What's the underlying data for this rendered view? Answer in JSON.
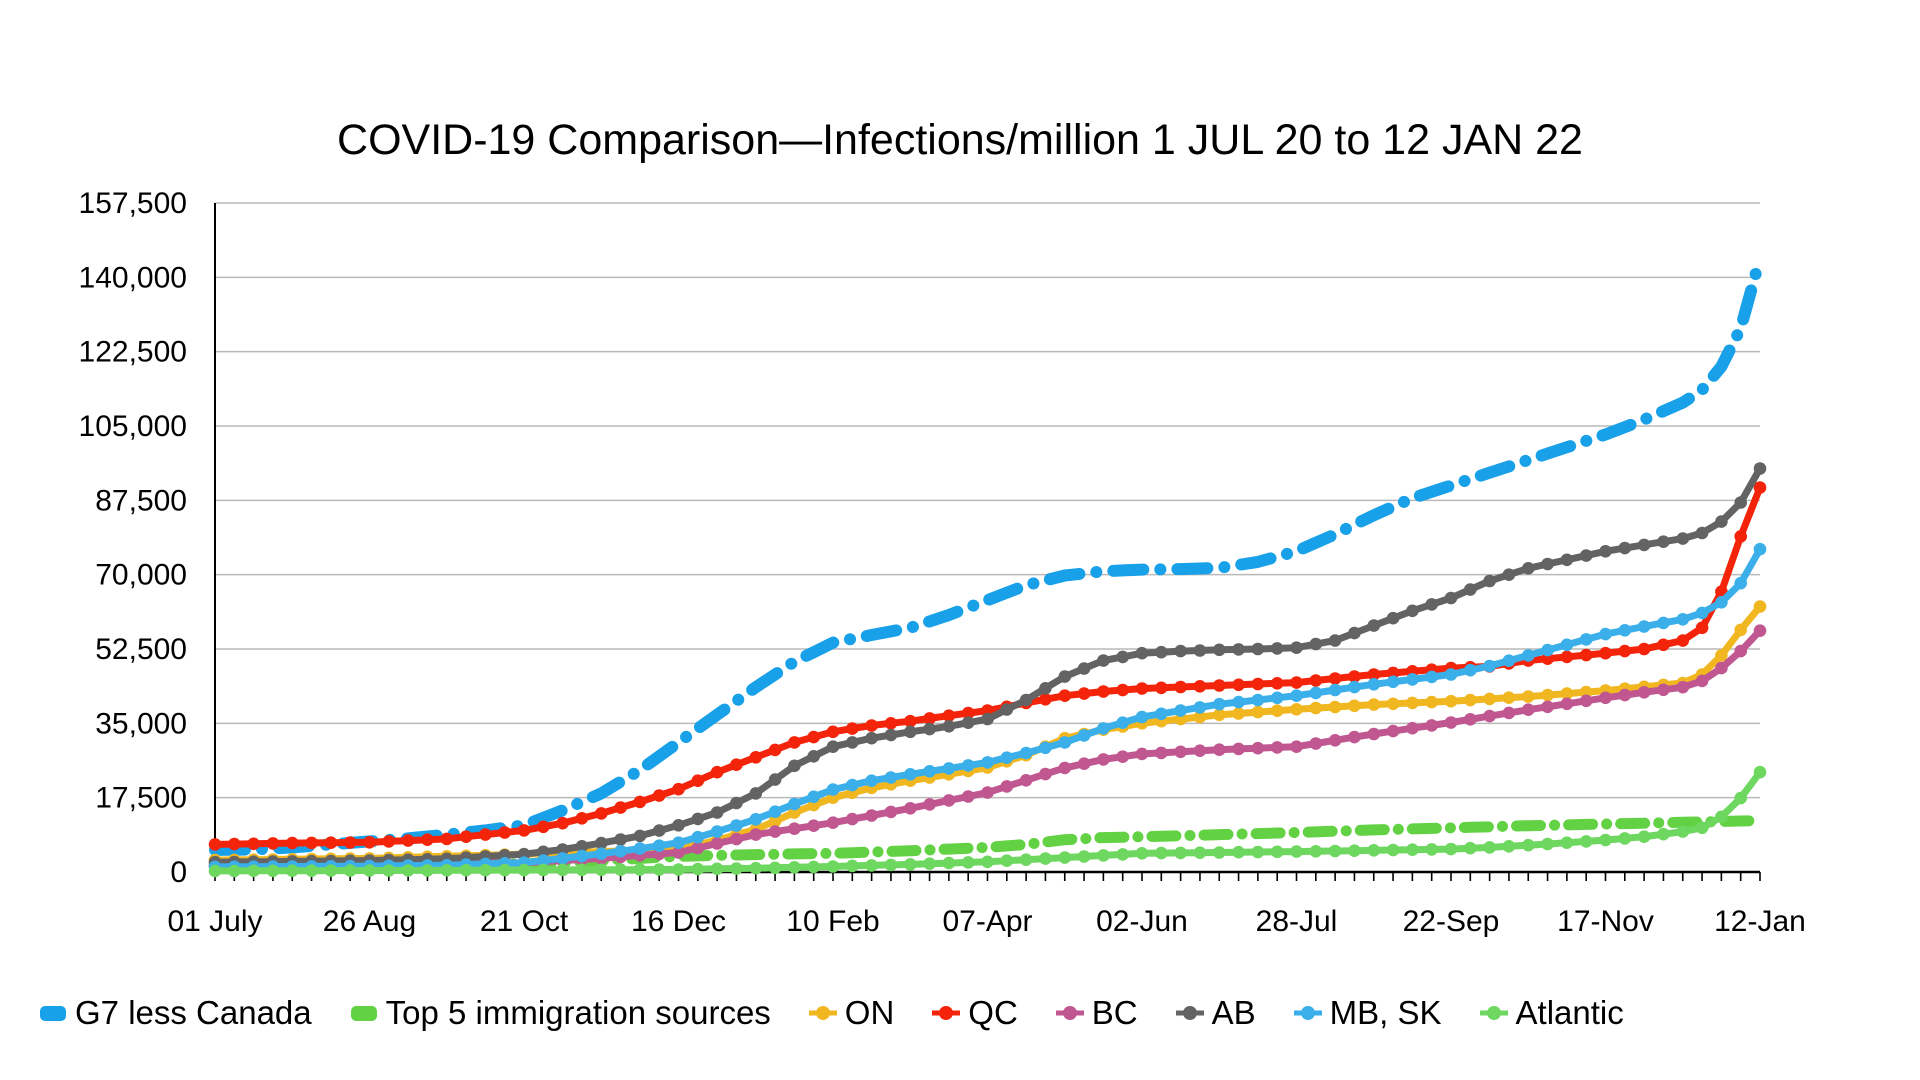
{
  "title": "COVID-19 Comparison—Infections/million 1 JUL 20 to 12 JAN 22",
  "chart_data": {
    "type": "line",
    "title": "COVID-19 Comparison—Infections/million 1 JUL 20 to 12 JAN 22",
    "grid": true,
    "legend_position": "bottom",
    "x_axis": {
      "tick_labels": [
        "01 July",
        "26 Aug",
        "21 Oct",
        "16 Dec",
        "10 Feb",
        "07-Apr",
        "02-Jun",
        "28-Jul",
        "22-Sep",
        "17-Nov",
        "12-Jan"
      ],
      "unit": "weeks since 1 Jul 2020",
      "range_weeks": [
        0,
        80
      ],
      "minor_ticks": "weekly"
    },
    "y_axis": {
      "min": 0,
      "max": 157500,
      "step": 17500,
      "tick_labels": [
        "0",
        "17,500",
        "35,000",
        "52,500",
        "70,000",
        "87,500",
        "105,000",
        "122,500",
        "140,000",
        "157,500"
      ]
    },
    "colors": {
      "gridline": "#b9b9b9",
      "axis": "#000000",
      "text": "#000000"
    },
    "series": [
      {
        "name": "G7 less Canada",
        "id": "g7",
        "color": "#18A0E8",
        "style": "dash-dot-wide",
        "points": [
          [
            0,
            5200
          ],
          [
            2,
            5300
          ],
          [
            4,
            5800
          ],
          [
            6,
            6500
          ],
          [
            8,
            7200
          ],
          [
            10,
            7900
          ],
          [
            12,
            8800
          ],
          [
            14,
            9800
          ],
          [
            16,
            11000
          ],
          [
            18,
            14500
          ],
          [
            20,
            18500
          ],
          [
            22,
            24000
          ],
          [
            24,
            30500
          ],
          [
            26,
            37000
          ],
          [
            28,
            43500
          ],
          [
            30,
            49500
          ],
          [
            32,
            54000
          ],
          [
            34,
            55800
          ],
          [
            36,
            57500
          ],
          [
            38,
            60500
          ],
          [
            40,
            64000
          ],
          [
            42,
            67500
          ],
          [
            44,
            69800
          ],
          [
            46,
            70800
          ],
          [
            48,
            71200
          ],
          [
            50,
            71300
          ],
          [
            52,
            71600
          ],
          [
            54,
            73000
          ],
          [
            56,
            75500
          ],
          [
            58,
            79500
          ],
          [
            60,
            84000
          ],
          [
            62,
            88000
          ],
          [
            64,
            91000
          ],
          [
            66,
            94000
          ],
          [
            68,
            97000
          ],
          [
            70,
            100000
          ],
          [
            72,
            103000
          ],
          [
            74,
            106500
          ],
          [
            76,
            110500
          ],
          [
            77,
            113500
          ],
          [
            78,
            119000
          ],
          [
            79,
            128000
          ],
          [
            80,
            144500
          ]
        ]
      },
      {
        "name": "Top 5 immigration sources",
        "id": "top5",
        "color": "#62D244",
        "style": "dash-dot",
        "points": [
          [
            0,
            900
          ],
          [
            8,
            1300
          ],
          [
            16,
            1900
          ],
          [
            20,
            2700
          ],
          [
            24,
            3700
          ],
          [
            28,
            4100
          ],
          [
            32,
            4400
          ],
          [
            36,
            5000
          ],
          [
            40,
            5800
          ],
          [
            42,
            6500
          ],
          [
            44,
            7600
          ],
          [
            46,
            8100
          ],
          [
            48,
            8300
          ],
          [
            52,
            8800
          ],
          [
            56,
            9300
          ],
          [
            60,
            9900
          ],
          [
            64,
            10400
          ],
          [
            68,
            10900
          ],
          [
            72,
            11300
          ],
          [
            76,
            11700
          ],
          [
            80,
            12100
          ]
        ]
      },
      {
        "name": "ON",
        "id": "on",
        "color": "#F0B721",
        "style": "solid",
        "points": [
          [
            0,
            2800
          ],
          [
            8,
            3200
          ],
          [
            12,
            3700
          ],
          [
            16,
            4200
          ],
          [
            20,
            4800
          ],
          [
            24,
            5400
          ],
          [
            26,
            7500
          ],
          [
            28,
            10000
          ],
          [
            30,
            14000
          ],
          [
            32,
            17500
          ],
          [
            34,
            19800
          ],
          [
            36,
            21500
          ],
          [
            38,
            23000
          ],
          [
            40,
            24600
          ],
          [
            42,
            27500
          ],
          [
            44,
            31500
          ],
          [
            46,
            33500
          ],
          [
            48,
            35000
          ],
          [
            52,
            37000
          ],
          [
            56,
            38300
          ],
          [
            60,
            39400
          ],
          [
            64,
            40200
          ],
          [
            68,
            41300
          ],
          [
            72,
            42700
          ],
          [
            74,
            43600
          ],
          [
            76,
            44500
          ],
          [
            77,
            46500
          ],
          [
            78,
            51000
          ],
          [
            79,
            57000
          ],
          [
            80,
            62500
          ]
        ]
      },
      {
        "name": "QC",
        "id": "qc",
        "color": "#F3240A",
        "style": "solid",
        "points": [
          [
            0,
            6500
          ],
          [
            4,
            6800
          ],
          [
            8,
            7000
          ],
          [
            12,
            7800
          ],
          [
            16,
            9800
          ],
          [
            18,
            11500
          ],
          [
            20,
            13800
          ],
          [
            22,
            16500
          ],
          [
            24,
            19500
          ],
          [
            26,
            23500
          ],
          [
            28,
            27000
          ],
          [
            30,
            30500
          ],
          [
            32,
            33000
          ],
          [
            34,
            34500
          ],
          [
            36,
            35500
          ],
          [
            38,
            36800
          ],
          [
            40,
            38000
          ],
          [
            42,
            39800
          ],
          [
            44,
            41500
          ],
          [
            46,
            42500
          ],
          [
            48,
            43200
          ],
          [
            52,
            43900
          ],
          [
            56,
            44600
          ],
          [
            60,
            46500
          ],
          [
            64,
            48000
          ],
          [
            66,
            48400
          ],
          [
            68,
            49800
          ],
          [
            72,
            51500
          ],
          [
            74,
            52500
          ],
          [
            76,
            54500
          ],
          [
            77,
            57500
          ],
          [
            78,
            66000
          ],
          [
            79,
            79000
          ],
          [
            80,
            90500
          ]
        ]
      },
      {
        "name": "BC",
        "id": "bc",
        "color": "#C05790",
        "style": "solid",
        "points": [
          [
            0,
            1500
          ],
          [
            8,
            1800
          ],
          [
            16,
            2200
          ],
          [
            20,
            3200
          ],
          [
            24,
            4600
          ],
          [
            28,
            8800
          ],
          [
            32,
            11600
          ],
          [
            36,
            15000
          ],
          [
            40,
            18700
          ],
          [
            44,
            24500
          ],
          [
            46,
            26500
          ],
          [
            48,
            27800
          ],
          [
            52,
            28800
          ],
          [
            56,
            29500
          ],
          [
            60,
            32500
          ],
          [
            64,
            35200
          ],
          [
            68,
            38200
          ],
          [
            72,
            41000
          ],
          [
            74,
            42300
          ],
          [
            76,
            43500
          ],
          [
            77,
            45000
          ],
          [
            78,
            48000
          ],
          [
            79,
            52000
          ],
          [
            80,
            56800
          ]
        ]
      },
      {
        "name": "AB",
        "id": "ab",
        "color": "#636363",
        "style": "solid",
        "points": [
          [
            0,
            2300
          ],
          [
            8,
            2700
          ],
          [
            12,
            3100
          ],
          [
            16,
            4200
          ],
          [
            18,
            5300
          ],
          [
            20,
            6800
          ],
          [
            22,
            8500
          ],
          [
            24,
            11000
          ],
          [
            26,
            14000
          ],
          [
            28,
            18500
          ],
          [
            30,
            25000
          ],
          [
            32,
            29500
          ],
          [
            34,
            31500
          ],
          [
            36,
            33000
          ],
          [
            38,
            34300
          ],
          [
            40,
            36000
          ],
          [
            42,
            40500
          ],
          [
            44,
            46000
          ],
          [
            46,
            49800
          ],
          [
            48,
            51500
          ],
          [
            50,
            52000
          ],
          [
            52,
            52300
          ],
          [
            54,
            52500
          ],
          [
            56,
            52800
          ],
          [
            58,
            54500
          ],
          [
            60,
            58000
          ],
          [
            62,
            61500
          ],
          [
            64,
            64500
          ],
          [
            66,
            68500
          ],
          [
            68,
            71500
          ],
          [
            70,
            73500
          ],
          [
            72,
            75500
          ],
          [
            74,
            77000
          ],
          [
            76,
            78500
          ],
          [
            77,
            79800
          ],
          [
            78,
            82500
          ],
          [
            79,
            87000
          ],
          [
            80,
            95000
          ]
        ]
      },
      {
        "name": "MB, SK",
        "id": "mbsk",
        "color": "#3BAFE9",
        "style": "solid",
        "points": [
          [
            0,
            1200
          ],
          [
            8,
            1400
          ],
          [
            12,
            1600
          ],
          [
            16,
            2200
          ],
          [
            18,
            3200
          ],
          [
            20,
            4300
          ],
          [
            22,
            5500
          ],
          [
            24,
            6900
          ],
          [
            26,
            9500
          ],
          [
            28,
            12400
          ],
          [
            30,
            16000
          ],
          [
            32,
            19400
          ],
          [
            34,
            21500
          ],
          [
            36,
            23000
          ],
          [
            38,
            24400
          ],
          [
            40,
            25800
          ],
          [
            42,
            28000
          ],
          [
            44,
            30500
          ],
          [
            46,
            33800
          ],
          [
            48,
            36500
          ],
          [
            52,
            39500
          ],
          [
            56,
            41500
          ],
          [
            60,
            44200
          ],
          [
            64,
            46500
          ],
          [
            66,
            48500
          ],
          [
            68,
            51000
          ],
          [
            70,
            53500
          ],
          [
            72,
            56000
          ],
          [
            74,
            57800
          ],
          [
            76,
            59500
          ],
          [
            77,
            61000
          ],
          [
            78,
            63500
          ],
          [
            79,
            68000
          ],
          [
            80,
            76000
          ]
        ]
      },
      {
        "name": "Atlantic",
        "id": "atlantic",
        "color": "#6ED75F",
        "style": "solid",
        "points": [
          [
            0,
            250
          ],
          [
            8,
            350
          ],
          [
            16,
            450
          ],
          [
            24,
            600
          ],
          [
            28,
            900
          ],
          [
            32,
            1300
          ],
          [
            36,
            1800
          ],
          [
            40,
            2400
          ],
          [
            44,
            3400
          ],
          [
            48,
            4400
          ],
          [
            52,
            4600
          ],
          [
            56,
            4800
          ],
          [
            60,
            5100
          ],
          [
            64,
            5400
          ],
          [
            66,
            5800
          ],
          [
            68,
            6300
          ],
          [
            70,
            6900
          ],
          [
            72,
            7500
          ],
          [
            74,
            8300
          ],
          [
            76,
            9500
          ],
          [
            77,
            10400
          ],
          [
            78,
            13000
          ],
          [
            79,
            17400
          ],
          [
            80,
            23500
          ]
        ]
      }
    ]
  }
}
